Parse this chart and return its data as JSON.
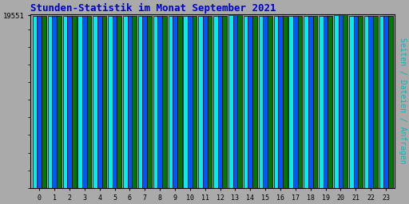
{
  "title": "Stunden-Statistik im Monat September 2021",
  "title_color": "#0000cc",
  "title_fontsize": 9,
  "ylabel_right": "Seiten / Dateien / Anfragen",
  "ylabel_right_color": "#00bbbb",
  "ylabel_right_fontsize": 7,
  "background_color": "#aaaaaa",
  "plot_bg_color": "#aaaaaa",
  "bar_color_cyan": "#00eeee",
  "bar_color_blue": "#0055ff",
  "bar_color_green": "#007700",
  "bar_edge_color": "#000000",
  "hours": [
    0,
    1,
    2,
    3,
    4,
    5,
    6,
    7,
    8,
    9,
    10,
    11,
    12,
    13,
    14,
    15,
    16,
    17,
    18,
    19,
    20,
    21,
    22,
    23
  ],
  "ytick_label": "19551",
  "ytick_value": 19551,
  "values_cyan": [
    19470,
    19465,
    19460,
    19495,
    19492,
    19500,
    19503,
    19498,
    19492,
    19490,
    19490,
    19490,
    19510,
    19551,
    19520,
    19515,
    19510,
    19508,
    19510,
    19505,
    19551,
    19520,
    19510,
    19490
  ],
  "values_blue": [
    19468,
    19462,
    19458,
    19492,
    19490,
    19498,
    19500,
    19495,
    19490,
    19488,
    19488,
    19488,
    19507,
    19548,
    19517,
    19512,
    19508,
    19506,
    19508,
    19502,
    19548,
    19518,
    19508,
    19488
  ],
  "values_green": [
    19465,
    19460,
    19455,
    19490,
    19488,
    19495,
    19498,
    19492,
    19487,
    19485,
    19485,
    19485,
    19504,
    19545,
    19514,
    19509,
    19505,
    19503,
    19505,
    19499,
    19545,
    19515,
    19505,
    19485
  ],
  "ylim_min": 0,
  "ylim_max": 19700,
  "ytick_pos": 19551,
  "bar_width": 0.3
}
